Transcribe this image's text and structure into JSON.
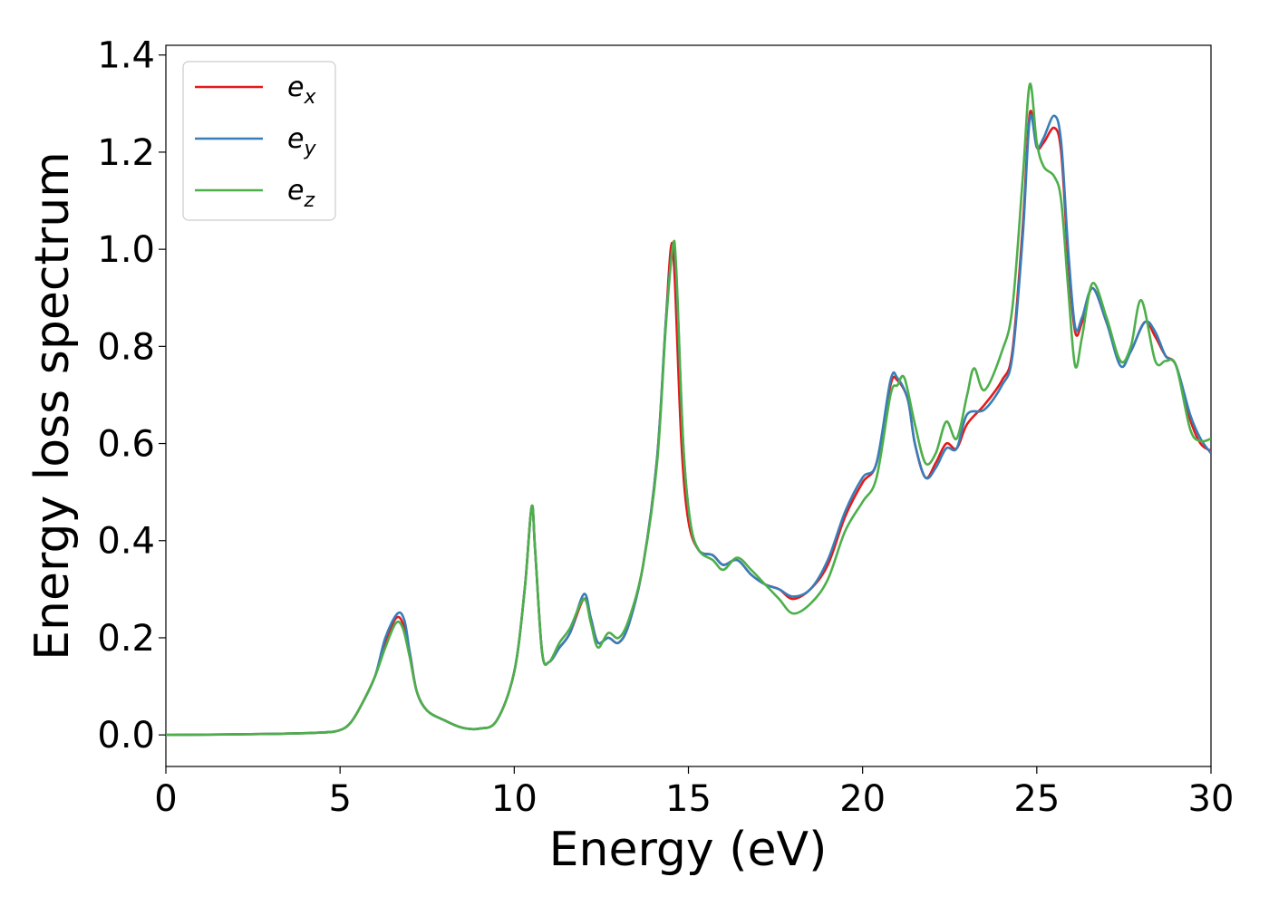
{
  "chart_data": {
    "type": "line",
    "title": "",
    "xlabel": "Energy (eV)",
    "ylabel": "Energy loss spectrum",
    "xlim": [
      0,
      30
    ],
    "ylim": [
      -0.065,
      1.42
    ],
    "xticks": [
      0,
      5,
      10,
      15,
      20,
      25,
      30
    ],
    "yticks": [
      0.0,
      0.2,
      0.4,
      0.6,
      0.8,
      1.0,
      1.2,
      1.4
    ],
    "xtick_labels": [
      "0",
      "5",
      "10",
      "15",
      "20",
      "25",
      "30"
    ],
    "ytick_labels": [
      "0.0",
      "0.2",
      "0.4",
      "0.6",
      "0.8",
      "1.0",
      "1.2",
      "1.4"
    ],
    "grid": false,
    "legend_position": "top-left",
    "series": [
      {
        "name": "e_x",
        "label_base": "e",
        "label_sub": "x",
        "color": "#e41a1c",
        "points": [
          [
            0,
            0
          ],
          [
            3,
            0.002
          ],
          [
            4.5,
            0.005
          ],
          [
            5.0,
            0.01
          ],
          [
            5.3,
            0.025
          ],
          [
            5.6,
            0.06
          ],
          [
            6.0,
            0.12
          ],
          [
            6.3,
            0.19
          ],
          [
            6.6,
            0.24
          ],
          [
            6.8,
            0.23
          ],
          [
            7.0,
            0.17
          ],
          [
            7.2,
            0.09
          ],
          [
            7.5,
            0.05
          ],
          [
            8.0,
            0.03
          ],
          [
            8.5,
            0.015
          ],
          [
            9.0,
            0.013
          ],
          [
            9.5,
            0.03
          ],
          [
            10.0,
            0.13
          ],
          [
            10.3,
            0.3
          ],
          [
            10.5,
            0.47
          ],
          [
            10.6,
            0.38
          ],
          [
            10.8,
            0.17
          ],
          [
            11.0,
            0.15
          ],
          [
            11.3,
            0.18
          ],
          [
            11.6,
            0.21
          ],
          [
            12.0,
            0.28
          ],
          [
            12.2,
            0.24
          ],
          [
            12.4,
            0.19
          ],
          [
            12.7,
            0.2
          ],
          [
            13.0,
            0.19
          ],
          [
            13.3,
            0.23
          ],
          [
            13.7,
            0.35
          ],
          [
            14.1,
            0.57
          ],
          [
            14.35,
            0.85
          ],
          [
            14.5,
            1.005
          ],
          [
            14.6,
            0.95
          ],
          [
            14.8,
            0.6
          ],
          [
            15.0,
            0.44
          ],
          [
            15.3,
            0.38
          ],
          [
            15.7,
            0.37
          ],
          [
            16.0,
            0.35
          ],
          [
            16.4,
            0.36
          ],
          [
            16.8,
            0.33
          ],
          [
            17.2,
            0.31
          ],
          [
            17.6,
            0.3
          ],
          [
            18.0,
            0.28
          ],
          [
            18.5,
            0.3
          ],
          [
            19.0,
            0.35
          ],
          [
            19.5,
            0.45
          ],
          [
            20.0,
            0.52
          ],
          [
            20.4,
            0.56
          ],
          [
            20.8,
            0.72
          ],
          [
            21.0,
            0.73
          ],
          [
            21.3,
            0.69
          ],
          [
            21.5,
            0.6
          ],
          [
            21.8,
            0.53
          ],
          [
            22.1,
            0.56
          ],
          [
            22.4,
            0.6
          ],
          [
            22.7,
            0.59
          ],
          [
            23.0,
            0.64
          ],
          [
            23.5,
            0.68
          ],
          [
            24.0,
            0.73
          ],
          [
            24.3,
            0.79
          ],
          [
            24.6,
            1.05
          ],
          [
            24.8,
            1.28
          ],
          [
            25.0,
            1.21
          ],
          [
            25.2,
            1.22
          ],
          [
            25.5,
            1.25
          ],
          [
            25.7,
            1.2
          ],
          [
            25.9,
            0.98
          ],
          [
            26.1,
            0.83
          ],
          [
            26.3,
            0.85
          ],
          [
            26.6,
            0.92
          ],
          [
            27.0,
            0.85
          ],
          [
            27.4,
            0.77
          ],
          [
            27.7,
            0.79
          ],
          [
            28.1,
            0.85
          ],
          [
            28.4,
            0.82
          ],
          [
            28.7,
            0.78
          ],
          [
            29.0,
            0.76
          ],
          [
            29.4,
            0.65
          ],
          [
            29.7,
            0.6
          ],
          [
            30.0,
            0.585
          ]
        ]
      },
      {
        "name": "e_y",
        "label_base": "e",
        "label_sub": "y",
        "color": "#377eb8",
        "points": [
          [
            0,
            0
          ],
          [
            3,
            0.002
          ],
          [
            4.5,
            0.005
          ],
          [
            5.0,
            0.01
          ],
          [
            5.3,
            0.025
          ],
          [
            5.6,
            0.06
          ],
          [
            6.0,
            0.12
          ],
          [
            6.3,
            0.2
          ],
          [
            6.65,
            0.25
          ],
          [
            6.85,
            0.235
          ],
          [
            7.0,
            0.17
          ],
          [
            7.2,
            0.09
          ],
          [
            7.5,
            0.05
          ],
          [
            8.0,
            0.03
          ],
          [
            8.5,
            0.015
          ],
          [
            9.0,
            0.013
          ],
          [
            9.5,
            0.03
          ],
          [
            10.0,
            0.13
          ],
          [
            10.3,
            0.3
          ],
          [
            10.5,
            0.47
          ],
          [
            10.6,
            0.38
          ],
          [
            10.8,
            0.17
          ],
          [
            11.0,
            0.15
          ],
          [
            11.3,
            0.18
          ],
          [
            11.6,
            0.21
          ],
          [
            12.0,
            0.29
          ],
          [
            12.2,
            0.24
          ],
          [
            12.4,
            0.19
          ],
          [
            12.7,
            0.2
          ],
          [
            13.0,
            0.19
          ],
          [
            13.3,
            0.23
          ],
          [
            13.7,
            0.35
          ],
          [
            14.1,
            0.57
          ],
          [
            14.35,
            0.85
          ],
          [
            14.55,
            1.005
          ],
          [
            14.65,
            0.95
          ],
          [
            14.85,
            0.6
          ],
          [
            15.05,
            0.44
          ],
          [
            15.3,
            0.38
          ],
          [
            15.7,
            0.37
          ],
          [
            16.0,
            0.35
          ],
          [
            16.4,
            0.36
          ],
          [
            16.8,
            0.33
          ],
          [
            17.2,
            0.31
          ],
          [
            17.6,
            0.3
          ],
          [
            18.0,
            0.285
          ],
          [
            18.5,
            0.3
          ],
          [
            19.0,
            0.36
          ],
          [
            19.5,
            0.46
          ],
          [
            20.0,
            0.53
          ],
          [
            20.4,
            0.56
          ],
          [
            20.8,
            0.73
          ],
          [
            21.0,
            0.735
          ],
          [
            21.3,
            0.69
          ],
          [
            21.5,
            0.6
          ],
          [
            21.8,
            0.53
          ],
          [
            22.1,
            0.55
          ],
          [
            22.4,
            0.59
          ],
          [
            22.7,
            0.59
          ],
          [
            23.0,
            0.66
          ],
          [
            23.5,
            0.67
          ],
          [
            24.0,
            0.72
          ],
          [
            24.3,
            0.78
          ],
          [
            24.6,
            1.03
          ],
          [
            24.8,
            1.27
          ],
          [
            25.0,
            1.21
          ],
          [
            25.2,
            1.23
          ],
          [
            25.5,
            1.275
          ],
          [
            25.7,
            1.22
          ],
          [
            25.9,
            1.0
          ],
          [
            26.1,
            0.84
          ],
          [
            26.3,
            0.86
          ],
          [
            26.6,
            0.92
          ],
          [
            27.0,
            0.85
          ],
          [
            27.4,
            0.76
          ],
          [
            27.7,
            0.79
          ],
          [
            28.1,
            0.85
          ],
          [
            28.4,
            0.83
          ],
          [
            28.7,
            0.78
          ],
          [
            29.0,
            0.76
          ],
          [
            29.4,
            0.66
          ],
          [
            29.7,
            0.61
          ],
          [
            30.0,
            0.58
          ]
        ]
      },
      {
        "name": "e_z",
        "label_base": "e",
        "label_sub": "z",
        "color": "#4daf4a",
        "points": [
          [
            0,
            0
          ],
          [
            3,
            0.002
          ],
          [
            4.5,
            0.005
          ],
          [
            5.0,
            0.01
          ],
          [
            5.3,
            0.025
          ],
          [
            5.6,
            0.06
          ],
          [
            6.0,
            0.12
          ],
          [
            6.3,
            0.18
          ],
          [
            6.6,
            0.23
          ],
          [
            6.8,
            0.22
          ],
          [
            7.0,
            0.16
          ],
          [
            7.2,
            0.09
          ],
          [
            7.5,
            0.05
          ],
          [
            8.0,
            0.03
          ],
          [
            8.5,
            0.015
          ],
          [
            9.0,
            0.013
          ],
          [
            9.5,
            0.03
          ],
          [
            10.0,
            0.13
          ],
          [
            10.3,
            0.3
          ],
          [
            10.5,
            0.47
          ],
          [
            10.6,
            0.38
          ],
          [
            10.8,
            0.17
          ],
          [
            11.0,
            0.15
          ],
          [
            11.3,
            0.19
          ],
          [
            11.6,
            0.22
          ],
          [
            12.0,
            0.28
          ],
          [
            12.2,
            0.23
          ],
          [
            12.4,
            0.18
          ],
          [
            12.7,
            0.21
          ],
          [
            13.0,
            0.2
          ],
          [
            13.3,
            0.24
          ],
          [
            13.7,
            0.35
          ],
          [
            14.1,
            0.56
          ],
          [
            14.35,
            0.84
          ],
          [
            14.55,
            1.005
          ],
          [
            14.65,
            0.96
          ],
          [
            14.85,
            0.6
          ],
          [
            15.05,
            0.44
          ],
          [
            15.3,
            0.38
          ],
          [
            15.7,
            0.36
          ],
          [
            16.0,
            0.34
          ],
          [
            16.4,
            0.365
          ],
          [
            16.8,
            0.34
          ],
          [
            17.2,
            0.31
          ],
          [
            17.6,
            0.28
          ],
          [
            18.0,
            0.25
          ],
          [
            18.5,
            0.27
          ],
          [
            19.0,
            0.32
          ],
          [
            19.5,
            0.42
          ],
          [
            20.0,
            0.48
          ],
          [
            20.4,
            0.53
          ],
          [
            20.8,
            0.7
          ],
          [
            21.0,
            0.72
          ],
          [
            21.2,
            0.735
          ],
          [
            21.5,
            0.64
          ],
          [
            21.8,
            0.56
          ],
          [
            22.1,
            0.58
          ],
          [
            22.4,
            0.645
          ],
          [
            22.7,
            0.61
          ],
          [
            23.0,
            0.7
          ],
          [
            23.2,
            0.755
          ],
          [
            23.5,
            0.71
          ],
          [
            24.0,
            0.79
          ],
          [
            24.3,
            0.88
          ],
          [
            24.6,
            1.15
          ],
          [
            24.8,
            1.34
          ],
          [
            25.0,
            1.22
          ],
          [
            25.2,
            1.17
          ],
          [
            25.5,
            1.15
          ],
          [
            25.7,
            1.1
          ],
          [
            25.9,
            0.92
          ],
          [
            26.1,
            0.76
          ],
          [
            26.3,
            0.82
          ],
          [
            26.6,
            0.93
          ],
          [
            27.0,
            0.86
          ],
          [
            27.4,
            0.77
          ],
          [
            27.7,
            0.8
          ],
          [
            28.0,
            0.895
          ],
          [
            28.4,
            0.77
          ],
          [
            28.7,
            0.77
          ],
          [
            29.0,
            0.76
          ],
          [
            29.4,
            0.63
          ],
          [
            29.7,
            0.605
          ],
          [
            30.0,
            0.61
          ]
        ]
      }
    ]
  }
}
